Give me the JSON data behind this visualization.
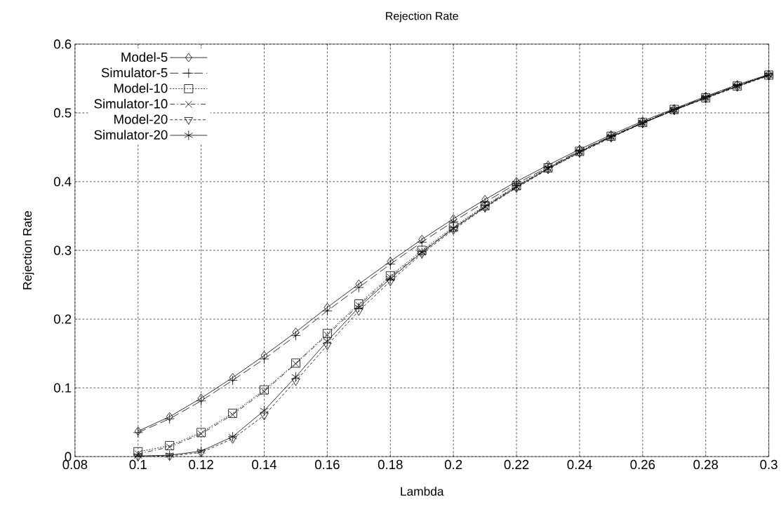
{
  "chart_data": {
    "type": "line",
    "title": "Rejection Rate",
    "xlabel": "Lambda",
    "ylabel": "Rejection Rate",
    "x": [
      0.1,
      0.11,
      0.12,
      0.13,
      0.14,
      0.15,
      0.16,
      0.17,
      0.18,
      0.19,
      0.2,
      0.21,
      0.22,
      0.23,
      0.24,
      0.25,
      0.26,
      0.27,
      0.28,
      0.29,
      0.3
    ],
    "series": [
      {
        "name": "Model-5",
        "color": "#000000",
        "marker": "diamond",
        "line_style": "solid",
        "values": [
          0.037,
          0.058,
          0.085,
          0.115,
          0.147,
          0.181,
          0.217,
          0.251,
          0.284,
          0.316,
          0.346,
          0.374,
          0.4,
          0.424,
          0.447,
          0.468,
          0.488,
          0.506,
          0.524,
          0.541,
          0.556
        ]
      },
      {
        "name": "Simulator-5",
        "color": "#000000",
        "marker": "plus",
        "line_style": "dashed",
        "values": [
          0.035,
          0.055,
          0.081,
          0.111,
          0.142,
          0.176,
          0.212,
          0.246,
          0.28,
          0.312,
          0.342,
          0.37,
          0.397,
          0.421,
          0.445,
          0.466,
          0.486,
          0.505,
          0.523,
          0.54,
          0.555
        ]
      },
      {
        "name": "Model-10",
        "color": "#000000",
        "marker": "square",
        "line_style": "dotted",
        "values": [
          0.007,
          0.016,
          0.035,
          0.063,
          0.097,
          0.136,
          0.179,
          0.222,
          0.263,
          0.3,
          0.334,
          0.365,
          0.394,
          0.42,
          0.444,
          0.466,
          0.486,
          0.505,
          0.522,
          0.539,
          0.555
        ]
      },
      {
        "name": "Simulator-10",
        "color": "#000000",
        "marker": "x",
        "line_style": "dashdot",
        "values": [
          0.004,
          0.014,
          0.033,
          0.061,
          0.095,
          0.135,
          0.177,
          0.22,
          0.261,
          0.298,
          0.332,
          0.364,
          0.393,
          0.419,
          0.443,
          0.465,
          0.485,
          0.504,
          0.522,
          0.539,
          0.555
        ]
      },
      {
        "name": "Model-20",
        "color": "#000000",
        "marker": "triangle",
        "line_style": "densely dashed",
        "values": [
          0.0,
          0.001,
          0.006,
          0.026,
          0.06,
          0.11,
          0.162,
          0.212,
          0.255,
          0.295,
          0.33,
          0.362,
          0.391,
          0.418,
          0.442,
          0.464,
          0.485,
          0.504,
          0.521,
          0.538,
          0.554
        ]
      },
      {
        "name": "Simulator-20",
        "color": "#000000",
        "marker": "cross",
        "line_style": "solid",
        "values": [
          0.001,
          0.002,
          0.008,
          0.029,
          0.067,
          0.116,
          0.168,
          0.217,
          0.259,
          0.297,
          0.332,
          0.363,
          0.392,
          0.419,
          0.443,
          0.465,
          0.485,
          0.504,
          0.522,
          0.539,
          0.555
        ]
      }
    ],
    "xlim": [
      0.08,
      0.3
    ],
    "ylim": [
      0,
      0.6
    ],
    "xticks": [
      0.08,
      0.1,
      0.12,
      0.14,
      0.16,
      0.18,
      0.2,
      0.22,
      0.24,
      0.26,
      0.28,
      0.3
    ],
    "yticks": [
      0,
      0.1,
      0.2,
      0.3,
      0.4,
      0.5,
      0.6
    ],
    "grid": true,
    "legend": "top left"
  }
}
